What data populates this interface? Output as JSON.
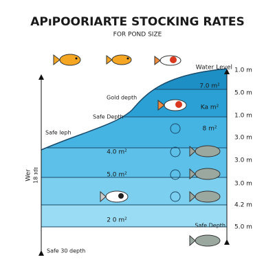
{
  "header": {
    "title": "APıPOORIARTE STOCKING RATES",
    "subtitle": "FOR POND SIZE"
  },
  "water_level": "Water Level",
  "depth_labels": [
    "1.0 m",
    "5.0 m",
    "1.0 m",
    "3.0 m",
    "3.0 m",
    "3.0 m",
    "4.2 m",
    "5.0 m"
  ],
  "zone_labels": [
    "7.0 m²",
    "Ka m²",
    "8 m²",
    "4.0 m²",
    "5.0 m²",
    "2 0 m²"
  ],
  "annotations": {
    "gold_depth": "Gold depth",
    "safe_depth_upper": "Safe Depth",
    "safe_leph": "Safe leph",
    "safe_depth_lower": "Safe Depth",
    "bottom": "Safe 30 depth"
  },
  "axis_label": [
    "Wer",
    "18 ɪdɪ"
  ]
}
